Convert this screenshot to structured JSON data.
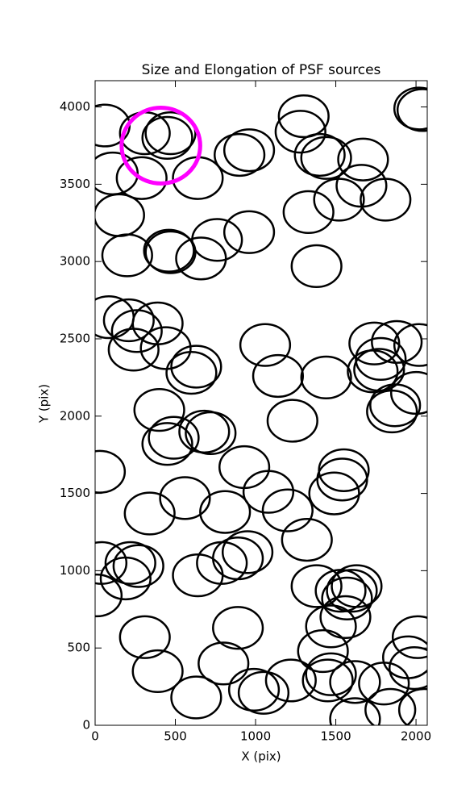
{
  "chart_data": {
    "type": "ellipse-scatter",
    "title": "Size and Elongation of PSF sources",
    "x_label": "X (pix)",
    "y_label": "Y (pix)",
    "xlim": [
      0,
      2070
    ],
    "ylim": [
      0,
      4170
    ],
    "xticks": [
      0,
      500,
      1000,
      1500,
      2000
    ],
    "yticks": [
      0,
      500,
      1000,
      1500,
      2000,
      2500,
      3000,
      3500,
      4000
    ],
    "color": "#000000",
    "width": 310,
    "height": 270,
    "x": [
      60,
      310,
      470,
      450,
      110,
      290,
      640,
      900,
      960,
      1300,
      1280,
      1400,
      1440,
      1670,
      1660,
      1520,
      1810,
      1330,
      2020,
      2040,
      150,
      200,
      460,
      470,
      660,
      760,
      960,
      1380,
      85,
      210,
      260,
      390,
      240,
      440,
      600,
      630,
      1060,
      1140,
      1440,
      1230,
      1740,
      1880,
      2020,
      1780,
      1770,
      1730,
      2000,
      1870,
      1850,
      400,
      450,
      490,
      680,
      720,
      30,
      930,
      1550,
      1540,
      1490,
      1080,
      560,
      340,
      810,
      1200,
      1320,
      40,
      220,
      190,
      270,
      10,
      640,
      790,
      890,
      950,
      1380,
      1530,
      1630,
      1600,
      1570,
      1560,
      1470,
      890,
      310,
      2010,
      1420,
      1950,
      1990,
      390,
      800,
      990,
      1050,
      1220,
      1450,
      1470,
      1620,
      1800,
      1840,
      1620,
      630,
      2050
    ],
    "y": [
      3880,
      3830,
      3830,
      3800,
      3570,
      3540,
      3540,
      3690,
      3720,
      3940,
      3840,
      3690,
      3670,
      3660,
      3490,
      3400,
      3400,
      3320,
      3990,
      3980,
      3300,
      3040,
      3070,
      3060,
      3020,
      3140,
      3190,
      2970,
      2640,
      2620,
      2550,
      2600,
      2430,
      2440,
      2280,
      2320,
      2460,
      2260,
      2250,
      1970,
      2470,
      2480,
      2460,
      2370,
      2300,
      2290,
      2150,
      2070,
      2030,
      2040,
      1820,
      1860,
      1900,
      1890,
      1640,
      1670,
      1650,
      1590,
      1500,
      1510,
      1470,
      1370,
      1380,
      1390,
      1200,
      1050,
      1050,
      950,
      1030,
      840,
      970,
      1050,
      1080,
      1120,
      900,
      870,
      900,
      870,
      820,
      700,
      640,
      630,
      570,
      570,
      480,
      440,
      370,
      350,
      400,
      230,
      210,
      290,
      290,
      330,
      280,
      270,
      100,
      40,
      180,
      100
    ],
    "highlight": {
      "x": 410,
      "y": 3750,
      "width": 490,
      "height": 490,
      "color": "#ff00ff"
    }
  }
}
